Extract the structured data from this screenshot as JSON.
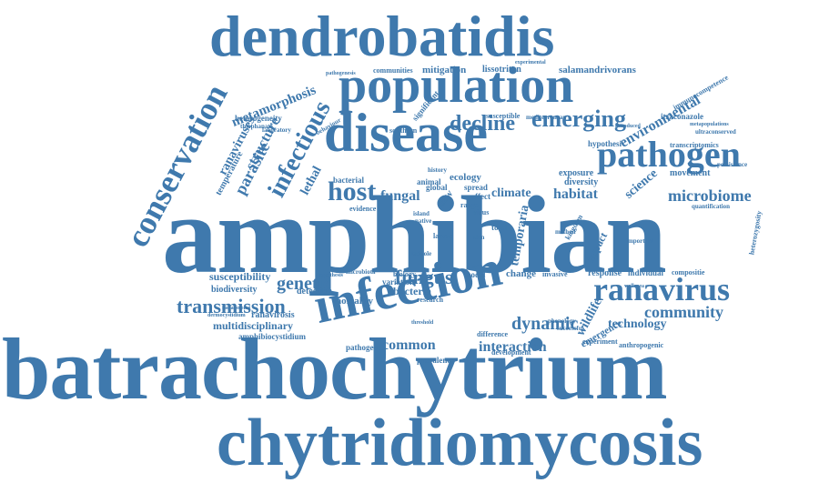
{
  "cloud": {
    "color": "#3f79ad",
    "background": "#ffffff",
    "words": {
      "amphibian": "amphibian",
      "batrachochytrium": "batrachochytrium",
      "chytridiomycosis": "chytridiomycosis",
      "dendrobatidis": "dendrobatidis",
      "population": "population",
      "disease": "disease",
      "infection": "infection",
      "pathogen": "pathogen",
      "ranavirus": "ranavirus",
      "conservation": "conservation",
      "host": "host",
      "infectious": "infectious",
      "emerging": "emerging",
      "decline": "decline",
      "transmission": "transmission",
      "fungus": "fungus",
      "genetic": "genetic",
      "microbiome": "microbiome",
      "community": "community",
      "dynamic": "dynamic",
      "interaction": "interaction",
      "common": "common",
      "fungal": "fungal",
      "habitat": "habitat",
      "environmental": "environmental",
      "parasite": "parasite",
      "structure": "structure",
      "metamorphosis": "metamorphosis",
      "ranaviruses": "ranaviruses",
      "lethal": "lethal",
      "susceptibility": "susceptibility",
      "multidisciplinary": "multidisciplinary",
      "technology": "technology",
      "climate": "climate",
      "science": "science",
      "temporaria": "temporaria",
      "wildlife": "wildlife",
      "impact": "impact",
      "change": "change",
      "ecology": "ecology",
      "emergence": "emergence",
      "mortality": "mortality",
      "bacteria": "bacteria",
      "detection": "detection",
      "biodiversity": "biodiversity",
      "ranavirosis": "ranavirosis",
      "amphibiocystidium": "amphibiocystidium",
      "mitigation": "mitigation",
      "lissotriton": "lissotriton",
      "salamandrivorans": "salamandrivorans",
      "communities": "communities",
      "response": "response",
      "individual": "individual",
      "diversity": "diversity",
      "exposure": "exposure",
      "hypothesi": "hypothesi",
      "movement": "movement",
      "transcriptomics": "transcriptomics",
      "itraconazole": "itraconazole",
      "immunocompetence": "immunocompetence",
      "heterogeneity": "heterogeneity",
      "temperature": "temperature",
      "spread": "spread",
      "effect": "effect",
      "global": "global",
      "animal": "animal",
      "new": "new",
      "range": "range",
      "bacterial": "bacterial",
      "evidence": "evidence",
      "toad": "toad",
      "model": "model",
      "variation": "variation",
      "research": "research",
      "biology": "biology",
      "invasive": "invasive",
      "pathogenic": "pathogenic",
      "difference": "difference",
      "development": "development",
      "prevalence": "prevalence",
      "anthropogenic": "anthropogenic",
      "experiment": "experiment",
      "phenology": "phenology",
      "successful": "successful",
      "compositie": "compositie",
      "quantification": "quantification",
      "persistence": "persistence",
      "ultraconserved": "ultraconserved",
      "metapopulations": "metapopulations",
      "heterozygosity": "heterozygosity",
      "important": "important",
      "southern": "southern",
      "significant": "significant",
      "susceptible": "susceptible",
      "mediterranean": "mediterranean",
      "behaviour": "behaviour",
      "laboratory": "laboratory",
      "thlophanate": "thlophanate",
      "experimental": "experimental",
      "pathogenesis": "pathogenesis",
      "hypothesis": "hypothesis",
      "threshold": "threshold",
      "dermoscyxidium": "dermocystidium",
      "metabolome": "metabolome",
      "wallacea": "wallacea",
      "kingdom": "kingdom",
      "method": "method",
      "virus": "virus",
      "larvae": "larvae",
      "skin": "skin",
      "native": "native",
      "island": "island",
      "tadpole": "tadpole",
      "microbiota": "microbiota",
      "history": "history",
      "introduced": "introduced"
    }
  }
}
